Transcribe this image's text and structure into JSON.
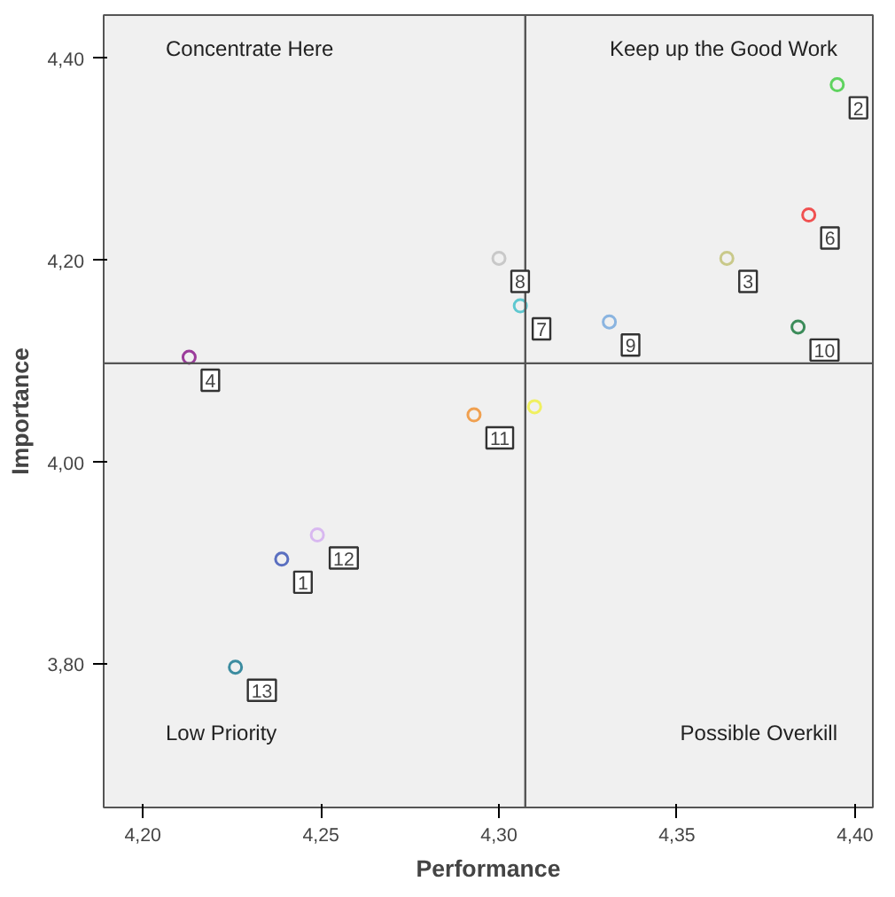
{
  "chart_data": {
    "type": "scatter",
    "xlabel": "Performance",
    "ylabel": "Importance",
    "x": [
      4.239,
      4.395,
      4.364,
      4.213,
      4.31,
      4.387,
      4.306,
      4.3,
      4.331,
      4.384,
      4.293,
      4.249,
      4.226
    ],
    "values": [
      3.904,
      4.374,
      4.202,
      4.104,
      4.055,
      4.245,
      4.155,
      4.202,
      4.139,
      4.134,
      4.047,
      3.928,
      3.797
    ],
    "colors": [
      "#5a6fc0",
      "#5fd35f",
      "#c9c98a",
      "#9b3c9b",
      "#f0f060",
      "#f05050",
      "#5fc8d0",
      "#c8c8c8",
      "#8ab4e0",
      "#3c8c5a",
      "#f0a050",
      "#d8b8f0",
      "#3c8ca0"
    ],
    "marker": "circle",
    "xlim": [
      4.189,
      4.405
    ],
    "ylim": [
      3.658,
      4.443
    ],
    "xticks": [
      {
        "value": 4.2,
        "label": "4,20"
      },
      {
        "value": 4.25,
        "label": "4,25"
      },
      {
        "value": 4.3,
        "label": "4,30"
      },
      {
        "value": 4.35,
        "label": "4,35"
      },
      {
        "value": 4.4,
        "label": "4,40"
      }
    ],
    "yticks": [
      {
        "value": 3.8,
        "label": "3,80"
      },
      {
        "value": 4.0,
        "label": "4,00"
      },
      {
        "value": 4.2,
        "label": "4,20"
      },
      {
        "value": 4.4,
        "label": "4,40"
      }
    ],
    "grid": false,
    "ref_lines": [
      {
        "axis": "x",
        "value": 4.3074
      },
      {
        "axis": "y",
        "value": 4.098
      }
    ],
    "annotations": [
      "Concentrate Here",
      "Keep up the Good Work",
      "Low Priority",
      "Possible Overkill",
      {
        "text": "1",
        "x": 4.239,
        "y": 3.904
      },
      {
        "text": "2",
        "x": 4.395,
        "y": 4.374
      },
      {
        "text": "3",
        "x": 4.364,
        "y": 4.202
      },
      {
        "text": "4",
        "x": 4.213,
        "y": 4.104
      },
      {
        "text": "6",
        "x": 4.387,
        "y": 4.245
      },
      {
        "text": "7",
        "x": 4.306,
        "y": 4.155
      },
      {
        "text": "8",
        "x": 4.3,
        "y": 4.202
      },
      {
        "text": "9",
        "x": 4.331,
        "y": 4.139
      },
      {
        "text": "10",
        "x": 4.384,
        "y": 4.134
      },
      {
        "text": "11",
        "x": 4.293,
        "y": 4.047
      },
      {
        "text": "12",
        "x": 4.249,
        "y": 3.928
      },
      {
        "text": "13",
        "x": 4.226,
        "y": 3.797
      }
    ]
  }
}
